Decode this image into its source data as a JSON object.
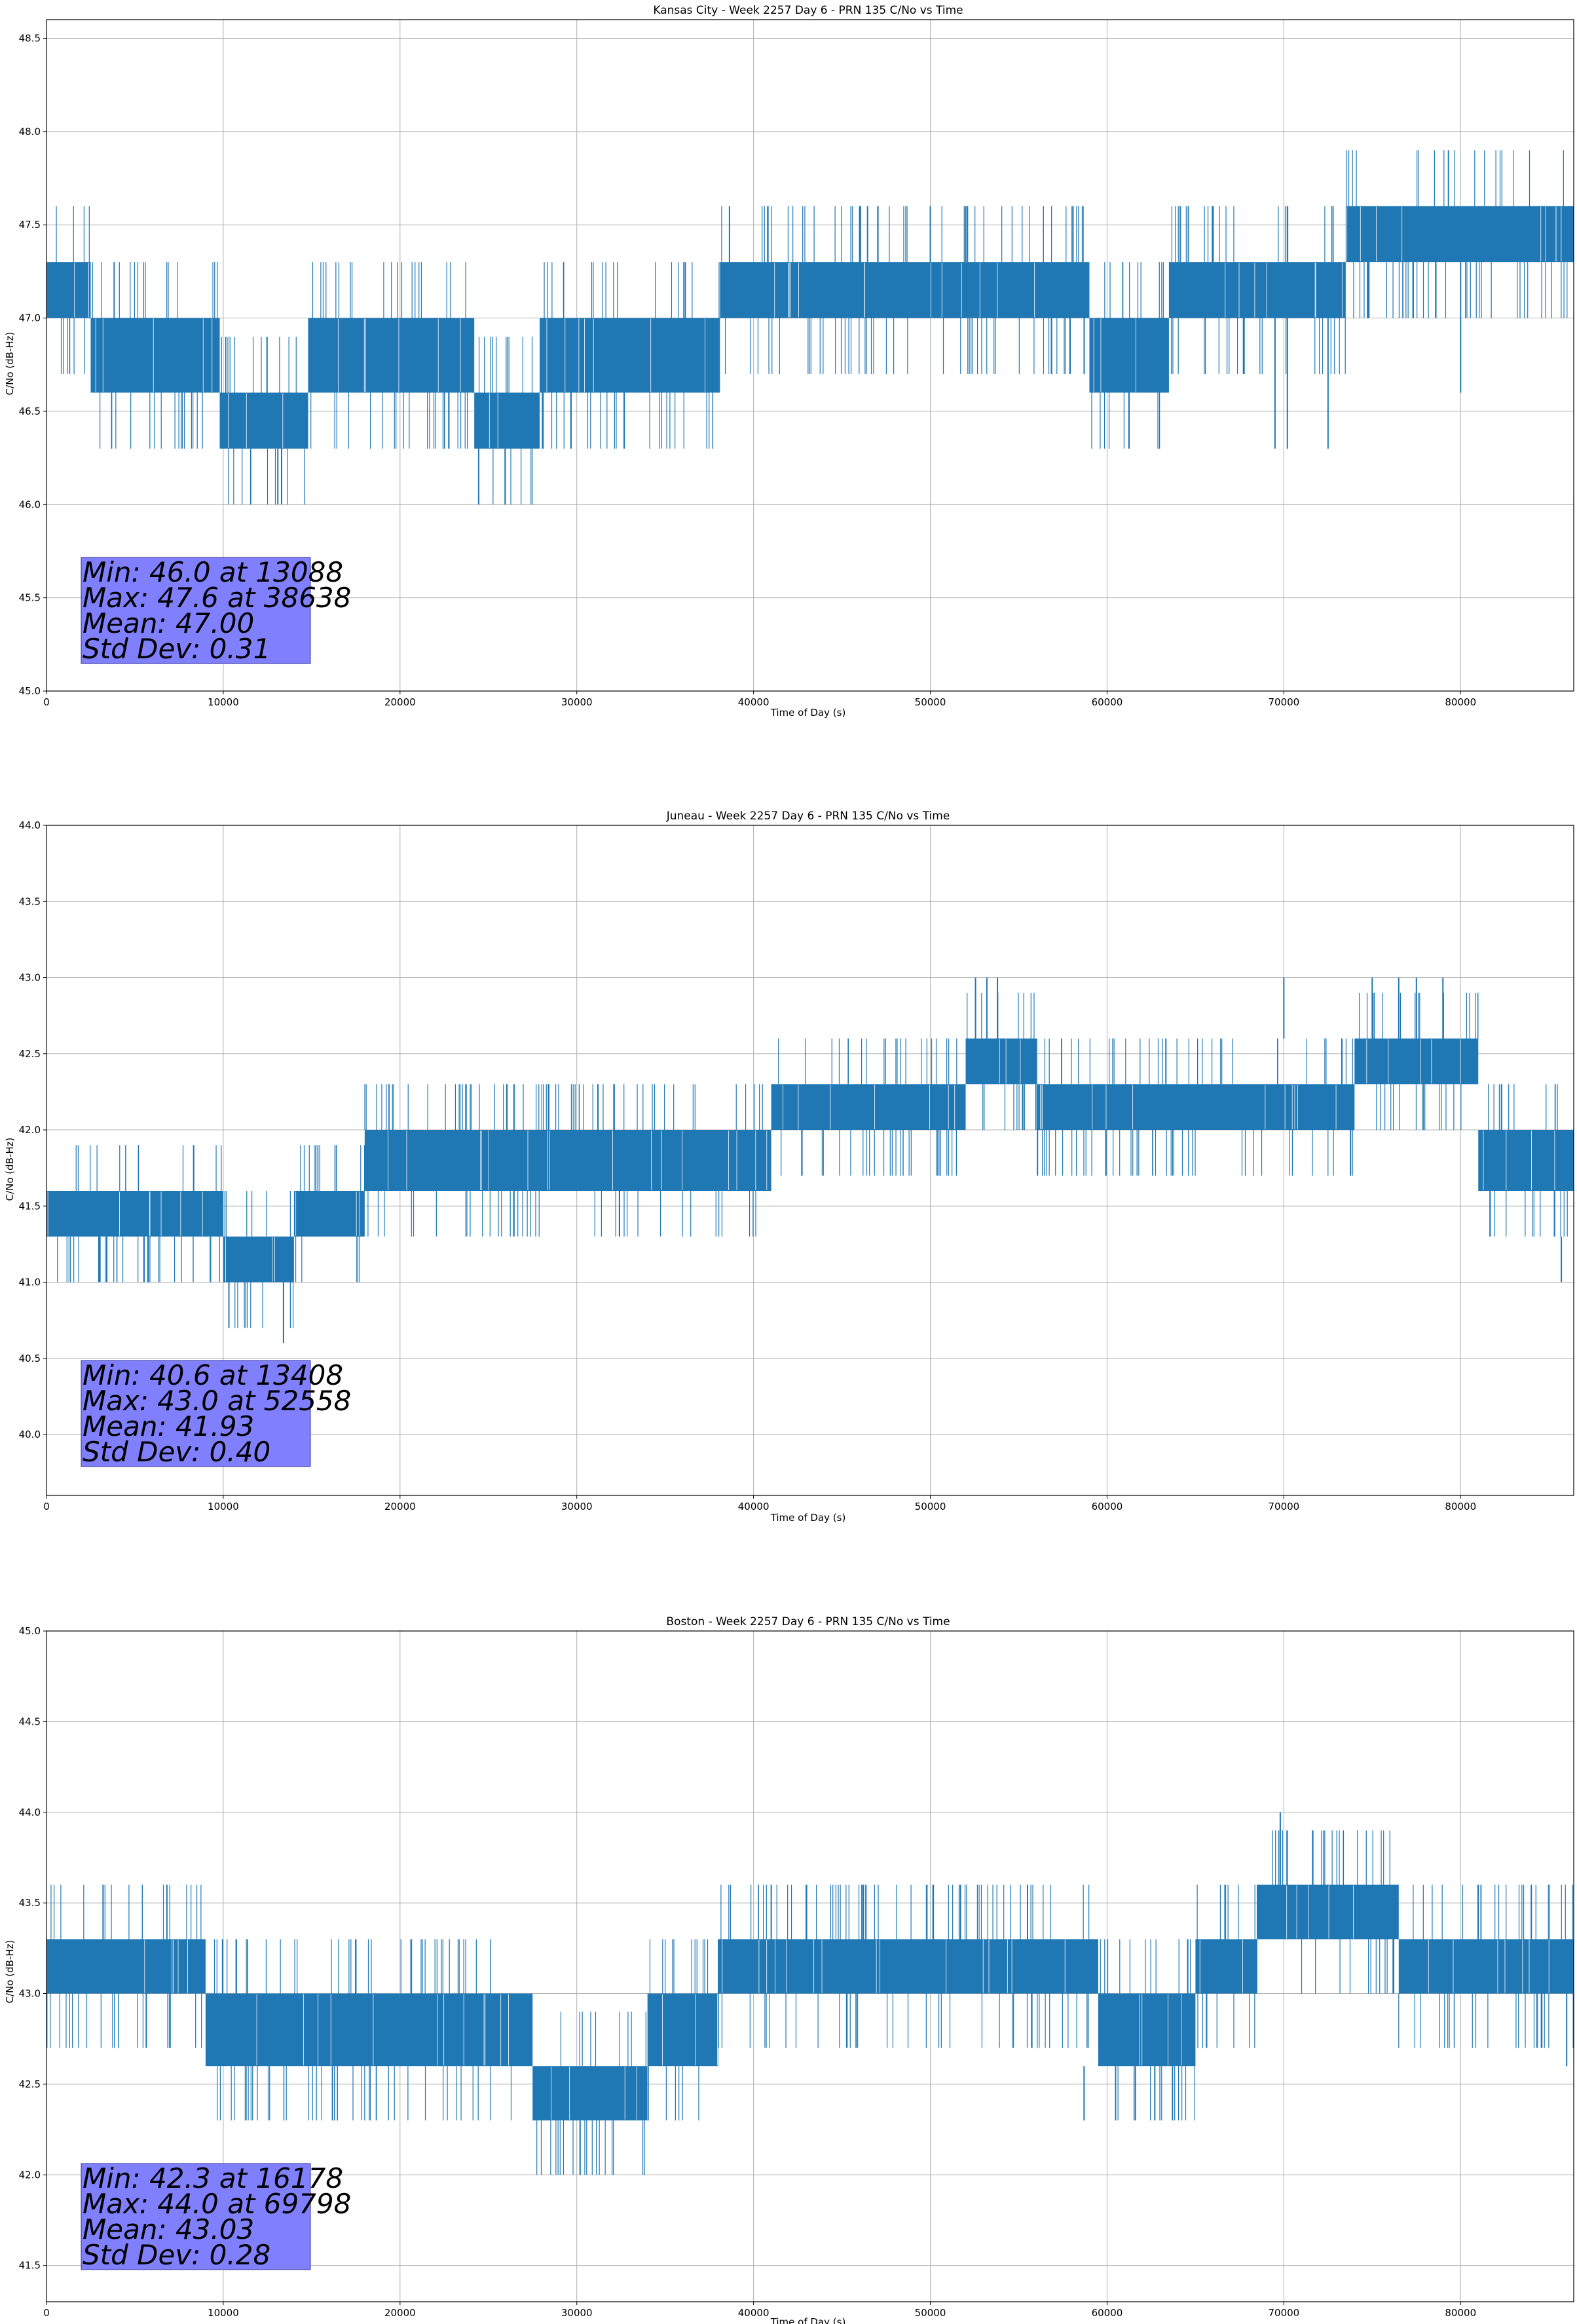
{
  "figure": {
    "background": "#ffffff",
    "series_color": "#1f77b4",
    "grid_color": "#b0b0b0",
    "stats_box_color": "#8080ff"
  },
  "chart_data": [
    {
      "type": "line",
      "title": "Kansas City - Week 2257 Day 6 - PRN 135 C/No vs Time",
      "xlabel": "Time of Day (s)",
      "ylabel": "C/No (dB-Hz)",
      "xlim": [
        0,
        86400
      ],
      "ylim": [
        45.0,
        48.6
      ],
      "xticks": [
        0,
        10000,
        20000,
        30000,
        40000,
        50000,
        60000,
        70000,
        80000
      ],
      "yticks": [
        45.0,
        45.5,
        46.0,
        46.5,
        47.0,
        47.5,
        48.0,
        48.5
      ],
      "ytick_labels": [
        "45.0",
        "45.5",
        "46.0",
        "46.5",
        "47.0",
        "47.5",
        "48.0",
        "48.5"
      ],
      "grid": true,
      "stats": [
        "Min: 46.0 at 13088",
        "Max: 47.6 at 38638",
        "Mean: 47.00",
        "Std Dev: 0.31"
      ],
      "series": [
        {
          "band_segments": [
            {
              "x": [
                0,
                2500
              ],
              "low": 47.0,
              "high": 47.3
            },
            {
              "x": [
                2500,
                9800
              ],
              "low": 46.6,
              "high": 47.0
            },
            {
              "x": [
                9800,
                14800
              ],
              "low": 46.3,
              "high": 46.6
            },
            {
              "x": [
                14800,
                24200
              ],
              "low": 46.6,
              "high": 47.0
            },
            {
              "x": [
                24200,
                27900
              ],
              "low": 46.3,
              "high": 46.6
            },
            {
              "x": [
                27900,
                38100
              ],
              "low": 46.6,
              "high": 47.0
            },
            {
              "x": [
                38100,
                59000
              ],
              "low": 47.0,
              "high": 47.3
            },
            {
              "x": [
                59000,
                63500
              ],
              "low": 46.6,
              "high": 47.0
            },
            {
              "x": [
                63500,
                73500
              ],
              "low": 47.0,
              "high": 47.3
            },
            {
              "x": [
                73500,
                86400
              ],
              "low": 47.3,
              "high": 47.6
            }
          ],
          "spikes": [
            {
              "x": 13088,
              "low": 46.0,
              "high": 46.3
            },
            {
              "x": 13300,
              "low": 46.0,
              "high": 46.3
            },
            {
              "x": 24450,
              "low": 46.0,
              "high": 46.3
            },
            {
              "x": 38638,
              "low": 47.3,
              "high": 47.6
            },
            {
              "x": 46000,
              "low": 47.3,
              "high": 47.6
            },
            {
              "x": 50000,
              "low": 47.3,
              "high": 47.6
            },
            {
              "x": 52000,
              "low": 47.3,
              "high": 47.6
            },
            {
              "x": 66000,
              "low": 47.3,
              "high": 47.6
            },
            {
              "x": 69500,
              "low": 46.3,
              "high": 47.0
            },
            {
              "x": 70200,
              "low": 46.3,
              "high": 47.0
            },
            {
              "x": 72500,
              "low": 46.3,
              "high": 47.0
            },
            {
              "x": 80000,
              "low": 46.6,
              "high": 47.3
            }
          ]
        }
      ]
    },
    {
      "type": "line",
      "title": "Juneau - Week 2257 Day 6 - PRN 135 C/No vs Time",
      "xlabel": "Time of Day (s)",
      "ylabel": "C/No (dB-Hz)",
      "xlim": [
        0,
        86400
      ],
      "ylim": [
        39.6,
        44.0
      ],
      "xticks": [
        0,
        10000,
        20000,
        30000,
        40000,
        50000,
        60000,
        70000,
        80000
      ],
      "yticks": [
        40.0,
        40.5,
        41.0,
        41.5,
        42.0,
        42.5,
        43.0,
        43.5,
        44.0
      ],
      "ytick_labels": [
        "40.0",
        "40.5",
        "41.0",
        "41.5",
        "42.0",
        "42.5",
        "43.0",
        "43.5",
        "44.0"
      ],
      "grid": true,
      "stats": [
        "Min: 40.6 at 13408",
        "Max: 43.0 at 52558",
        "Mean: 41.93",
        "Std Dev: 0.40"
      ],
      "series": [
        {
          "band_segments": [
            {
              "x": [
                0,
                7500
              ],
              "low": 41.3,
              "high": 41.6
            },
            {
              "x": [
                7500,
                10000
              ],
              "low": 41.3,
              "high": 41.6
            },
            {
              "x": [
                10000,
                14000
              ],
              "low": 41.0,
              "high": 41.3
            },
            {
              "x": [
                14000,
                18000
              ],
              "low": 41.3,
              "high": 41.6
            },
            {
              "x": [
                18000,
                25000
              ],
              "low": 41.6,
              "high": 42.0
            },
            {
              "x": [
                25000,
                41000
              ],
              "low": 41.6,
              "high": 42.0
            },
            {
              "x": [
                41000,
                52000
              ],
              "low": 42.0,
              "high": 42.3
            },
            {
              "x": [
                52000,
                56000
              ],
              "low": 42.3,
              "high": 42.6
            },
            {
              "x": [
                56000,
                74000
              ],
              "low": 42.0,
              "high": 42.3
            },
            {
              "x": [
                74000,
                81000
              ],
              "low": 42.3,
              "high": 42.6
            },
            {
              "x": [
                81000,
                86400
              ],
              "low": 41.6,
              "high": 42.0
            }
          ],
          "spikes": [
            {
              "x": 13408,
              "low": 40.6,
              "high": 41.0
            },
            {
              "x": 3000,
              "low": 41.0,
              "high": 41.3
            },
            {
              "x": 52558,
              "low": 42.6,
              "high": 43.0
            },
            {
              "x": 53200,
              "low": 42.6,
              "high": 43.0
            },
            {
              "x": 53800,
              "low": 42.6,
              "high": 43.0
            },
            {
              "x": 70000,
              "low": 42.6,
              "high": 43.0
            },
            {
              "x": 75000,
              "low": 42.6,
              "high": 43.0
            },
            {
              "x": 76500,
              "low": 42.6,
              "high": 43.0
            },
            {
              "x": 77500,
              "low": 42.6,
              "high": 43.0
            },
            {
              "x": 79000,
              "low": 42.6,
              "high": 43.0
            },
            {
              "x": 85700,
              "low": 41.0,
              "high": 41.3
            }
          ]
        }
      ]
    },
    {
      "type": "line",
      "title": "Boston - Week 2257 Day 6 - PRN 135 C/No vs Time",
      "xlabel": "Time of Day (s)",
      "ylabel": "C/No (dB-Hz)",
      "xlim": [
        0,
        86400
      ],
      "ylim": [
        41.3,
        45.0
      ],
      "xticks": [
        0,
        10000,
        20000,
        30000,
        40000,
        50000,
        60000,
        70000,
        80000
      ],
      "yticks": [
        41.5,
        42.0,
        42.5,
        43.0,
        43.5,
        44.0,
        44.5,
        45.0
      ],
      "ytick_labels": [
        "41.5",
        "42.0",
        "42.5",
        "43.0",
        "43.5",
        "44.0",
        "44.5",
        "45.0"
      ],
      "grid": true,
      "stats": [
        "Min: 42.3 at 16178",
        "Max: 44.0 at 69798",
        "Mean: 43.03",
        "Std Dev: 0.28"
      ],
      "series": [
        {
          "band_segments": [
            {
              "x": [
                0,
                9000
              ],
              "low": 43.0,
              "high": 43.3
            },
            {
              "x": [
                9000,
                27500
              ],
              "low": 42.6,
              "high": 43.0
            },
            {
              "x": [
                27500,
                34000
              ],
              "low": 42.3,
              "high": 42.6
            },
            {
              "x": [
                34000,
                38000
              ],
              "low": 42.6,
              "high": 43.0
            },
            {
              "x": [
                38000,
                59500
              ],
              "low": 43.0,
              "high": 43.3
            },
            {
              "x": [
                59500,
                65000
              ],
              "low": 42.6,
              "high": 43.0
            },
            {
              "x": [
                65000,
                68500
              ],
              "low": 43.0,
              "high": 43.3
            },
            {
              "x": [
                68500,
                76500
              ],
              "low": 43.3,
              "high": 43.6
            },
            {
              "x": [
                76500,
                86400
              ],
              "low": 43.0,
              "high": 43.3
            }
          ],
          "spikes": [
            {
              "x": 3200,
              "low": 43.3,
              "high": 43.6
            },
            {
              "x": 16178,
              "low": 42.3,
              "high": 42.6
            },
            {
              "x": 58700,
              "low": 42.3,
              "high": 42.6
            },
            {
              "x": 61600,
              "low": 42.3,
              "high": 42.6
            },
            {
              "x": 62700,
              "low": 42.3,
              "high": 42.6
            },
            {
              "x": 63700,
              "low": 42.3,
              "high": 42.6
            },
            {
              "x": 69798,
              "low": 43.6,
              "high": 44.0
            },
            {
              "x": 41000,
              "low": 43.3,
              "high": 43.6
            },
            {
              "x": 43000,
              "low": 43.3,
              "high": 43.6
            },
            {
              "x": 55500,
              "low": 43.3,
              "high": 43.6
            },
            {
              "x": 81000,
              "low": 43.3,
              "high": 43.6
            },
            {
              "x": 84000,
              "low": 43.3,
              "high": 43.6
            },
            {
              "x": 86000,
              "low": 42.6,
              "high": 43.0
            }
          ]
        }
      ]
    }
  ]
}
